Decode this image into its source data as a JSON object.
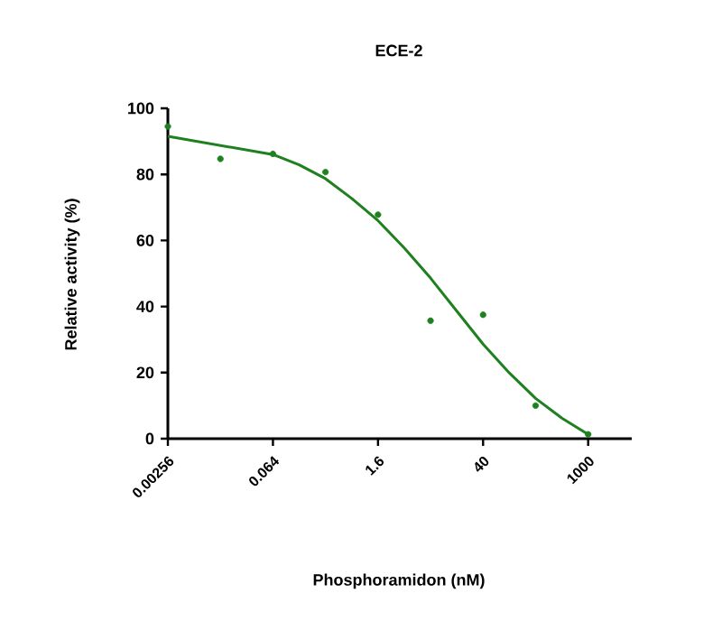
{
  "chart_data": {
    "type": "scatter",
    "title": "ECE-2",
    "xlabel": "Phosphoramidon (nM)",
    "ylabel": "Relative activity (%)",
    "log": "x",
    "xlim": [
      0.00256,
      3800
    ],
    "ylim": [
      0,
      100
    ],
    "xticks": [
      0.00256,
      0.064,
      1.6,
      40,
      1000
    ],
    "yticks": [
      0,
      20,
      40,
      60,
      80,
      100
    ],
    "grid": false,
    "series": [
      {
        "marker": "circle",
        "color": "#1e801e",
        "x": [
          0.00256,
          0.0128,
          0.064,
          0.32,
          1.6,
          8,
          40,
          200,
          1000
        ],
        "values": [
          94.5,
          84.7,
          86.2,
          80.7,
          67.8,
          35.7,
          37.5,
          10,
          1.3
        ]
      },
      {
        "type": "line",
        "marker": "none",
        "color": "#1e801e",
        "x": [
          0.00256,
          0.064,
          0.143,
          0.32,
          0.716,
          1.6,
          3.58,
          8,
          17.9,
          40,
          89.4,
          200,
          447,
          1000
        ],
        "values": [
          91.5,
          86,
          82.9,
          78.7,
          72.7,
          66,
          57.7,
          48.6,
          38.6,
          28.6,
          19.9,
          12.2,
          6.2,
          1.3
        ]
      }
    ]
  }
}
